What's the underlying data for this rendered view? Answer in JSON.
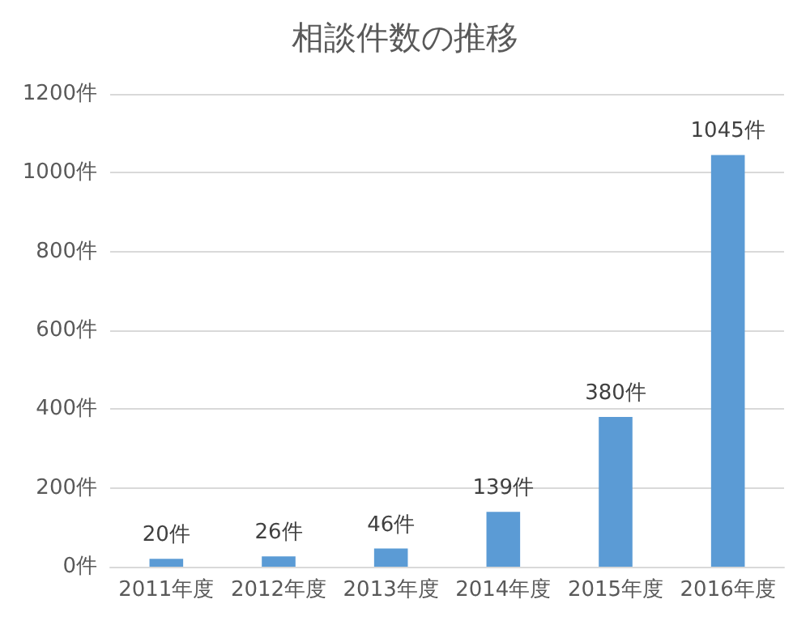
{
  "chart_data": {
    "type": "bar",
    "title": "相談件数の推移",
    "categories": [
      "2011年度",
      "2012年度",
      "2013年度",
      "2014年度",
      "2015年度",
      "2016年度"
    ],
    "values": [
      20,
      26,
      46,
      139,
      380,
      1045
    ],
    "value_labels": [
      "20件",
      "26件",
      "46件",
      "139件",
      "380件",
      "1045件"
    ],
    "color": "#5b9bd5",
    "ylim": [
      0,
      1200
    ],
    "yticks": [
      {
        "value": 0,
        "label": "0件"
      },
      {
        "value": 200,
        "label": "200件"
      },
      {
        "value": 400,
        "label": "400件"
      },
      {
        "value": 600,
        "label": "600件"
      },
      {
        "value": 800,
        "label": "800件"
      },
      {
        "value": 1000,
        "label": "1000件"
      },
      {
        "value": 1200,
        "label": "1200件"
      }
    ],
    "grid": "y"
  }
}
